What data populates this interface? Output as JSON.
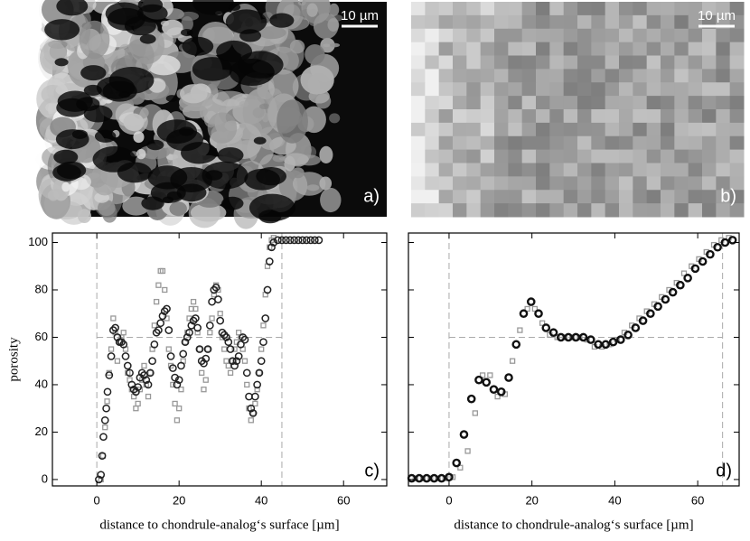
{
  "panels": [
    {
      "scale_bar": "10 µm",
      "label": "a)"
    },
    {
      "scale_bar": "10 µm",
      "label": "b)"
    }
  ],
  "chart_data": [
    {
      "type": "scatter",
      "label": "c)",
      "xlabel": "distance to chondrule-analog‘s surface [µm]",
      "ylabel": "porosity",
      "xlim": [
        -10.8,
        70.5
      ],
      "ylim": [
        -2.7,
        104
      ],
      "xticks": [
        0,
        20,
        40,
        60
      ],
      "yticks": [
        0,
        20,
        40,
        60,
        80,
        100
      ],
      "reference_lines": {
        "x": [
          0,
          45
        ],
        "y": [
          60
        ]
      },
      "series": [
        {
          "color": "#999999",
          "marker": "square",
          "x": [
            1,
            1.5,
            2,
            2.5,
            3,
            3.5,
            4,
            4.5,
            5,
            5.5,
            6,
            6.5,
            7,
            7.5,
            8,
            8.5,
            9,
            9.5,
            10,
            10.5,
            11,
            11.5,
            12,
            12.5,
            13,
            13.5,
            14,
            14.5,
            15,
            15.5,
            16,
            16.5,
            17,
            17.5,
            18,
            18.5,
            19,
            19.5,
            20,
            20.5,
            21,
            21.5,
            22,
            22.5,
            23,
            23.5,
            24,
            24.5,
            25,
            25.5,
            26,
            26.5,
            27,
            27.5,
            28,
            28.5,
            29,
            29.5,
            30,
            30.5,
            31,
            31.5,
            32,
            32.5,
            33,
            33.5,
            34,
            34.5,
            35,
            35.5,
            36,
            36.5,
            37,
            37.5,
            38,
            38.5,
            39,
            39.5,
            40,
            40.5,
            41,
            41.5,
            42,
            42.5,
            43
          ],
          "values": [
            0,
            10,
            22,
            33,
            45,
            55,
            68,
            62,
            50,
            58,
            60,
            62,
            55,
            45,
            42,
            38,
            35,
            30,
            32,
            38,
            42,
            48,
            40,
            35,
            45,
            55,
            65,
            75,
            82,
            88,
            88,
            80,
            68,
            55,
            48,
            40,
            32,
            25,
            30,
            38,
            50,
            58,
            62,
            68,
            72,
            75,
            72,
            62,
            55,
            45,
            38,
            42,
            55,
            62,
            68,
            78,
            82,
            80,
            70,
            60,
            55,
            50,
            48,
            45,
            50,
            55,
            58,
            62,
            60,
            55,
            50,
            40,
            30,
            25,
            28,
            32,
            38,
            45,
            55,
            65,
            78,
            90,
            98,
            101,
            102
          ]
        },
        {
          "color": "#222222",
          "marker": "circle",
          "x": [
            0.5,
            1,
            1.3,
            1.6,
            2,
            2.3,
            2.6,
            3,
            3.5,
            4,
            4.5,
            5,
            5.5,
            6,
            6.5,
            7,
            7.5,
            8,
            8.5,
            9,
            9.5,
            10,
            10.5,
            11,
            11.5,
            12,
            12.5,
            13,
            13.5,
            14,
            14.5,
            15,
            15.5,
            16,
            16.5,
            17,
            17.5,
            18,
            18.5,
            19,
            19.5,
            20,
            20.5,
            21,
            21.5,
            22,
            22.5,
            23,
            23.5,
            24,
            24.5,
            25,
            25.5,
            26,
            26.5,
            27,
            27.5,
            28,
            28.5,
            29,
            29.5,
            30,
            30.5,
            31,
            31.5,
            32,
            32.5,
            33,
            33.5,
            34,
            34.5,
            35,
            35.5,
            36,
            36.5,
            37,
            37.5,
            38,
            38.5,
            39,
            39.5,
            40,
            40.5,
            41,
            41.5,
            42,
            42.5,
            43,
            44,
            45,
            46,
            47,
            48,
            49,
            50,
            51,
            52,
            53,
            54
          ],
          "values": [
            0,
            2,
            10,
            18,
            25,
            30,
            37,
            44,
            52,
            63,
            64,
            60,
            58,
            58,
            57,
            52,
            48,
            45,
            40,
            38,
            37,
            39,
            43,
            45,
            44,
            42,
            40,
            45,
            50,
            57,
            62,
            63,
            66,
            69,
            71,
            72,
            63,
            52,
            47,
            43,
            40,
            42,
            48,
            53,
            58,
            60,
            62,
            65,
            67,
            68,
            64,
            55,
            50,
            49,
            51,
            55,
            65,
            75,
            80,
            81,
            76,
            67,
            62,
            61,
            60,
            58,
            55,
            50,
            48,
            50,
            52,
            57,
            60,
            59,
            45,
            35,
            30,
            28,
            35,
            40,
            45,
            50,
            58,
            68,
            80,
            92,
            98,
            100,
            101,
            101,
            101,
            101,
            101,
            101,
            101,
            101,
            101,
            101,
            101
          ]
        }
      ]
    },
    {
      "type": "scatter",
      "label": "d)",
      "xlabel": "distance to chondrule-analog‘s surface [µm]",
      "xlim": [
        -9.8,
        70
      ],
      "ylim": [
        -2.7,
        104
      ],
      "xticks": [
        0,
        20,
        40,
        60
      ],
      "yticks": [
        0,
        20,
        40,
        60,
        80,
        100
      ],
      "reference_lines": {
        "x": [
          0,
          66
        ],
        "y": [
          60
        ]
      },
      "series": [
        {
          "color": "#999999",
          "marker": "square",
          "x": [
            -8.1,
            -6.3,
            -4.5,
            -2.7,
            -0.9,
            0.9,
            2.7,
            4.5,
            6.3,
            8.1,
            9.9,
            11.7,
            13.5,
            15.3,
            17.1,
            18.9,
            20.7,
            22.5,
            24.3,
            26.1,
            27.9,
            29.7,
            31.5,
            33.3,
            35.1,
            36.9,
            38.7,
            40.5,
            42.3,
            44.1,
            45.9,
            47.7,
            49.5,
            51.3,
            53.1,
            54.9,
            56.7,
            58.5,
            60.3,
            62.1,
            63.9,
            65.7,
            67.5
          ],
          "values": [
            0.5,
            0.5,
            0.5,
            0.5,
            0.5,
            1,
            5,
            12,
            28,
            44,
            44,
            35,
            36,
            50,
            63,
            72,
            72,
            66,
            61,
            60,
            60,
            60,
            60,
            59,
            56,
            56,
            57,
            59,
            62,
            65,
            68,
            71,
            74,
            77,
            80,
            83,
            87,
            90,
            93,
            96,
            99,
            101,
            102
          ]
        },
        {
          "color": "#111111",
          "marker": "circle",
          "x": [
            -9,
            -7.2,
            -5.4,
            -3.6,
            -1.8,
            0,
            1.8,
            3.6,
            5.4,
            7.2,
            9,
            10.8,
            12.6,
            14.4,
            16.2,
            18,
            19.8,
            21.6,
            23.4,
            25.2,
            27,
            28.8,
            30.6,
            32.4,
            34.2,
            36,
            37.8,
            39.6,
            41.4,
            43.2,
            45,
            46.8,
            48.6,
            50.4,
            52.2,
            54,
            55.8,
            57.6,
            59.4,
            61.2,
            63,
            64.8,
            66.6,
            68.4
          ],
          "values": [
            0.5,
            0.5,
            0.5,
            0.5,
            0.5,
            1,
            7,
            19,
            34,
            42,
            41,
            38,
            37,
            43,
            57,
            70,
            75,
            70,
            64,
            62,
            60,
            60,
            60,
            60,
            59,
            57,
            57,
            58,
            59,
            61,
            64,
            67,
            70,
            73,
            76,
            79,
            82,
            85,
            89,
            92,
            95,
            98,
            100,
            101
          ]
        }
      ]
    }
  ]
}
